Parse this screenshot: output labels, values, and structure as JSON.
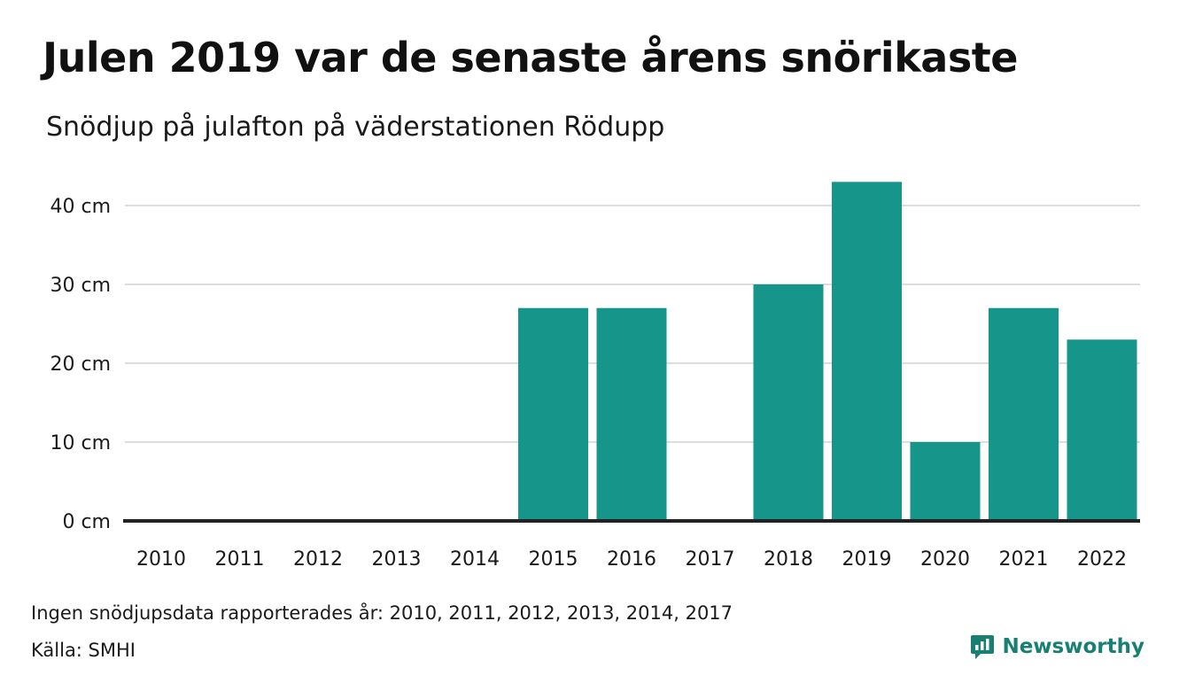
{
  "title": "Julen 2019 var de senaste årens snörikaste",
  "subtitle": "Snödjup på julafton på väderstationen Rödupp",
  "footnote": "Ingen snödjupsdata rapporterades år: 2010, 2011, 2012, 2013, 2014, 2017",
  "source": "Källa: SMHI",
  "brand": {
    "name": "Newsworthy",
    "icon": "newsworthy-logo-icon"
  },
  "colors": {
    "bar": "#16968a",
    "grid": "#dddddd",
    "axis": "#222222",
    "brand": "#1a7f73"
  },
  "chart_data": {
    "type": "bar",
    "categories": [
      "2010",
      "2011",
      "2012",
      "2013",
      "2014",
      "2015",
      "2016",
      "2017",
      "2018",
      "2019",
      "2020",
      "2021",
      "2022"
    ],
    "values": [
      0,
      0,
      0,
      0,
      0,
      27,
      27,
      0,
      30,
      43,
      10,
      27,
      23
    ],
    "ylim": [
      0,
      45
    ],
    "yticks": [
      0,
      10,
      20,
      30,
      40
    ],
    "ytick_labels": [
      "0 cm",
      "10 cm",
      "20 cm",
      "30 cm",
      "40 cm"
    ],
    "xlabel": "",
    "ylabel": "",
    "grid": true
  }
}
